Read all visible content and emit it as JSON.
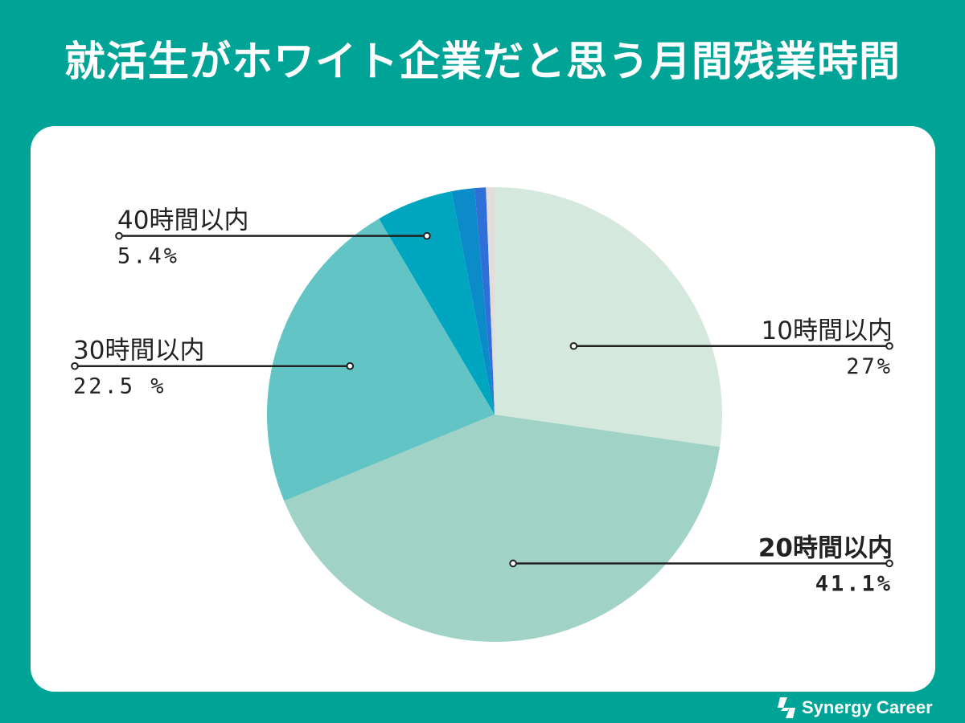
{
  "title": "就活生がホワイト企業だと思う月間残業時間",
  "brand": {
    "name": "Synergy Career"
  },
  "chart_data": {
    "type": "pie",
    "title": "就活生がホワイト企業だと思う月間残業時間",
    "slices": [
      {
        "label": "10時間以内",
        "value": 27,
        "value_text": "27%",
        "color": "#d4e8dd",
        "bold": false
      },
      {
        "label": "20時間以内",
        "value": 41.1,
        "value_text": "41.1%",
        "color": "#a0d3c6",
        "bold": true
      },
      {
        "label": "30時間以内",
        "value": 22.5,
        "value_text": "22.5 %",
        "color": "#62c4c4",
        "bold": false
      },
      {
        "label": "40時間以内",
        "value": 5.4,
        "value_text": "5.4%",
        "color": "#00a6c0",
        "bold": false
      },
      {
        "label": "",
        "value": 1.6,
        "value_text": "",
        "color": "#0b8cc8",
        "bold": false
      },
      {
        "label": "",
        "value": 0.8,
        "value_text": "",
        "color": "#2f6fd8",
        "bold": false
      },
      {
        "label": "",
        "value": 0.6,
        "value_text": "",
        "color": "#e2ddd8",
        "bold": false
      }
    ],
    "start": "12 o'clock",
    "direction": "clockwise",
    "legend": "none"
  }
}
